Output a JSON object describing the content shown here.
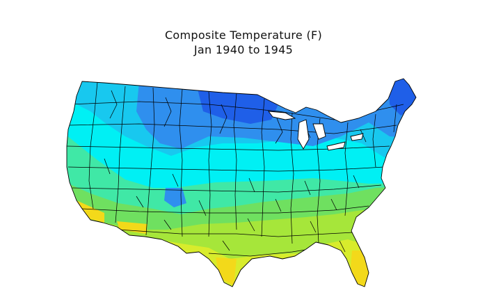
{
  "title": {
    "line1": "Composite Temperature (F)",
    "line2": "Jan 1940 to 1945"
  },
  "map": {
    "type": "choropleth",
    "region": "Contiguous United States climate divisions",
    "variable": "Composite temperature",
    "units": "F",
    "period": "Jan 1940 to 1945",
    "legend": "none",
    "colors": {
      "coldest": "#1f5fe8",
      "cold": "#2f8fee",
      "cool": "#18c8ef",
      "mild": "#00f0f4",
      "moderate": "#40e8a6",
      "warm": "#6fe060",
      "warmer": "#a6e63a",
      "hot": "#d8ec2c",
      "hottest": "#f3d91a",
      "background": "#ffffff",
      "border": "#000000"
    }
  }
}
